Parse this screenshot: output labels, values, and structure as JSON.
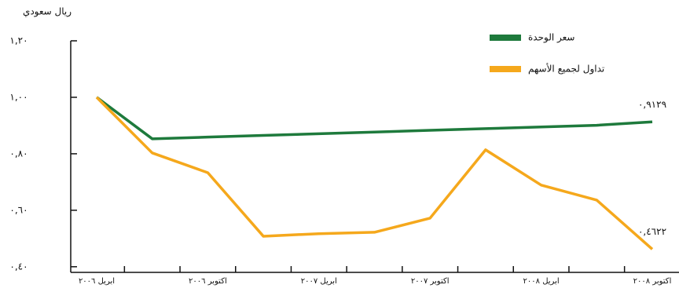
{
  "chart_data": {
    "type": "line",
    "y_label": "ريال سعودي",
    "categories": [
      "ابريل ٢٠٠٦",
      null,
      "اكتوبر ٢٠٠٦",
      null,
      "ابريل ٢٠٠٧",
      null,
      "اكتوبر ٢٠٠٧",
      null,
      "ابريل ٢٠٠٨",
      null,
      "اكتوبر ٢٠٠٨"
    ],
    "series": [
      {
        "name": "سعر الوحدة",
        "color": "#1e7a3c",
        "values": [
          1.0,
          0.853,
          0.859,
          0.865,
          0.871,
          0.877,
          0.883,
          0.889,
          0.895,
          0.901,
          0.9129
        ],
        "value_labels": [
          null,
          null,
          null,
          null,
          null,
          null,
          null,
          null,
          null,
          null,
          "٠,٩١٢٩"
        ]
      },
      {
        "name": "تداول لجميع الأسهم",
        "color": "#f5a81c",
        "values": [
          1.0,
          0.803,
          0.733,
          0.508,
          0.517,
          0.522,
          0.572,
          0.814,
          0.689,
          0.636,
          0.4622
        ],
        "value_labels": [
          null,
          null,
          null,
          null,
          null,
          null,
          null,
          null,
          null,
          null,
          "٠,٤٦٢٢"
        ]
      }
    ],
    "ylim": [
      0.38,
      1.2
    ],
    "yticks": [
      {
        "value": 0.4,
        "label": "٠,٤٠"
      },
      {
        "value": 0.6,
        "label": "٠,٦٠"
      },
      {
        "value": 0.8,
        "label": "٠,٨٠"
      },
      {
        "value": 1.0,
        "label": "١,٠٠"
      },
      {
        "value": 1.2,
        "label": "١,٢٠"
      }
    ],
    "legend": "top-right"
  }
}
